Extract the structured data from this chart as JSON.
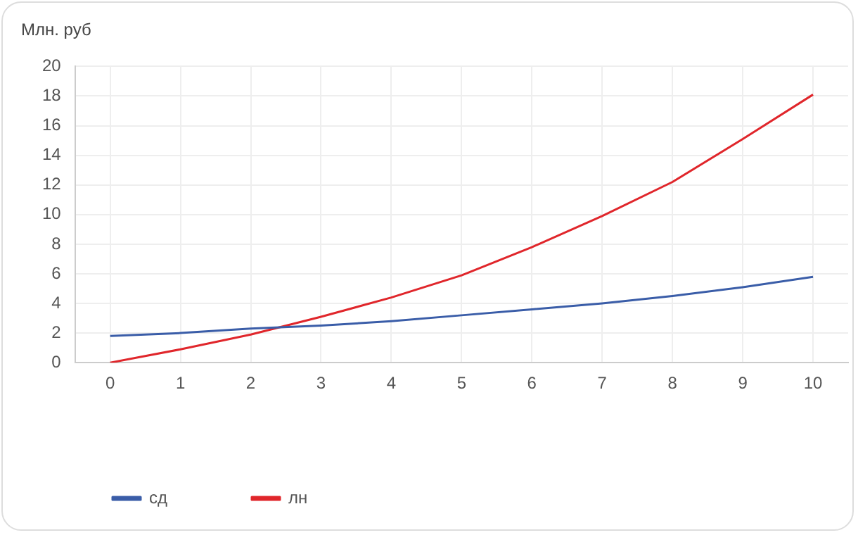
{
  "chart_data": {
    "type": "line",
    "ylabel": "Млн. руб",
    "categories": [
      "0",
      "1",
      "2",
      "3",
      "4",
      "5",
      "6",
      "7",
      "8",
      "9",
      "10"
    ],
    "series": [
      {
        "name": "сд",
        "color": "#3a5da8",
        "values": [
          1.8,
          2.0,
          2.3,
          2.5,
          2.8,
          3.2,
          3.6,
          4.0,
          4.5,
          5.1,
          5.8
        ]
      },
      {
        "name": "лн",
        "color": "#e0262b",
        "values": [
          0,
          0.9,
          1.9,
          3.1,
          4.4,
          5.9,
          7.8,
          9.9,
          12.2,
          15.1,
          18.1
        ]
      }
    ],
    "ylim": [
      0,
      20
    ],
    "yticks": [
      0,
      2,
      4,
      6,
      8,
      10,
      12,
      14,
      16,
      18,
      20
    ],
    "grid": true,
    "legend": "bottom left",
    "marker": "none",
    "line_style": "solid"
  }
}
